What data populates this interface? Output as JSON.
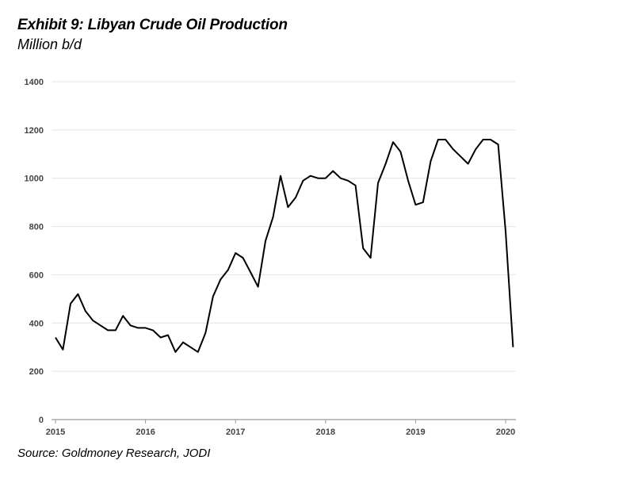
{
  "header": {
    "title": "Exhibit 9: Libyan Crude Oil Production",
    "subtitle": "Million b/d"
  },
  "footer": {
    "source": "Source: Goldmoney Research, JODI"
  },
  "chart_data": {
    "type": "line",
    "title": "Exhibit 9: Libyan Crude Oil Production",
    "ylabel": "Million b/d",
    "xlabel": "",
    "xlim": [
      2015,
      2020.12
    ],
    "ylim": [
      0,
      1400
    ],
    "x_ticks": [
      "2015",
      "2016",
      "2017",
      "2018",
      "2019",
      "2020"
    ],
    "y_ticks": [
      "0",
      "200",
      "400",
      "600",
      "800",
      "1000",
      "1200",
      "1400"
    ],
    "grid": "horizontal",
    "line_color": "#000000",
    "series": [
      {
        "x": [
          2015.0,
          2015.083,
          2015.167,
          2015.25,
          2015.333,
          2015.417,
          2015.5,
          2015.583,
          2015.667,
          2015.75,
          2015.833,
          2015.917,
          2016.0,
          2016.083,
          2016.167,
          2016.25,
          2016.333,
          2016.417,
          2016.5,
          2016.583,
          2016.667,
          2016.75,
          2016.833,
          2016.917,
          2017.0,
          2017.083,
          2017.167,
          2017.25,
          2017.333,
          2017.417,
          2017.5,
          2017.583,
          2017.667,
          2017.75,
          2017.833,
          2017.917,
          2018.0,
          2018.083,
          2018.167,
          2018.25,
          2018.333,
          2018.417,
          2018.5,
          2018.583,
          2018.667,
          2018.75,
          2018.833,
          2018.917,
          2019.0,
          2019.083,
          2019.167,
          2019.25,
          2019.333,
          2019.417,
          2019.5,
          2019.583,
          2019.667,
          2019.75,
          2019.833,
          2019.917,
          2020.0,
          2020.083
        ],
        "y": [
          340,
          290,
          480,
          520,
          450,
          410,
          390,
          370,
          370,
          430,
          390,
          380,
          380,
          370,
          340,
          350,
          280,
          320,
          300,
          280,
          360,
          510,
          580,
          620,
          690,
          670,
          610,
          550,
          740,
          840,
          1010,
          880,
          920,
          990,
          1010,
          1000,
          1000,
          1030,
          1000,
          990,
          970,
          710,
          670,
          980,
          1060,
          1150,
          1110,
          990,
          890,
          900,
          1070,
          1160,
          1160,
          1120,
          1090,
          1060,
          1120,
          1160,
          1160,
          1140,
          780,
          300
        ]
      }
    ]
  }
}
